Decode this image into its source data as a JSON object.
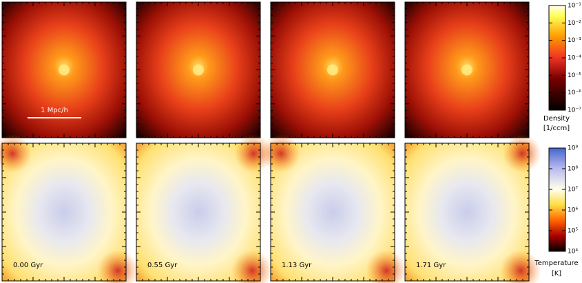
{
  "panels": {
    "scale_bar": "1 Mpc/h",
    "time_labels": [
      "0.00 Gyr",
      "0.55 Gyr",
      "1.13 Gyr",
      "1.71 Gyr"
    ]
  },
  "colorbars": [
    {
      "label": "Density",
      "unit": "[1/ccm]",
      "log": true,
      "lim": [
        1e-07,
        0.1
      ],
      "ticks": [
        {
          "value": 0.1,
          "label": "10⁻¹"
        },
        {
          "value": 0.01,
          "label": "10⁻²"
        },
        {
          "value": 0.001,
          "label": "10⁻³"
        },
        {
          "value": 0.0001,
          "label": "10⁻⁴"
        },
        {
          "value": 1e-05,
          "label": "10⁻⁵"
        },
        {
          "value": 1e-06,
          "label": "10⁻⁶"
        },
        {
          "value": 1e-07,
          "label": "10⁻⁷"
        }
      ]
    },
    {
      "label": "Temperature",
      "unit": "[K]",
      "log": true,
      "lim": [
        10000,
        1000000000
      ],
      "ticks": [
        {
          "value": 1000000000,
          "label": "10⁹"
        },
        {
          "value": 100000000,
          "label": "10⁸"
        },
        {
          "value": 10000000,
          "label": "10⁷"
        },
        {
          "value": 1000000,
          "label": "10⁶"
        },
        {
          "value": 100000,
          "label": "10⁵"
        },
        {
          "value": 10000,
          "label": "10⁴"
        }
      ]
    }
  ]
}
